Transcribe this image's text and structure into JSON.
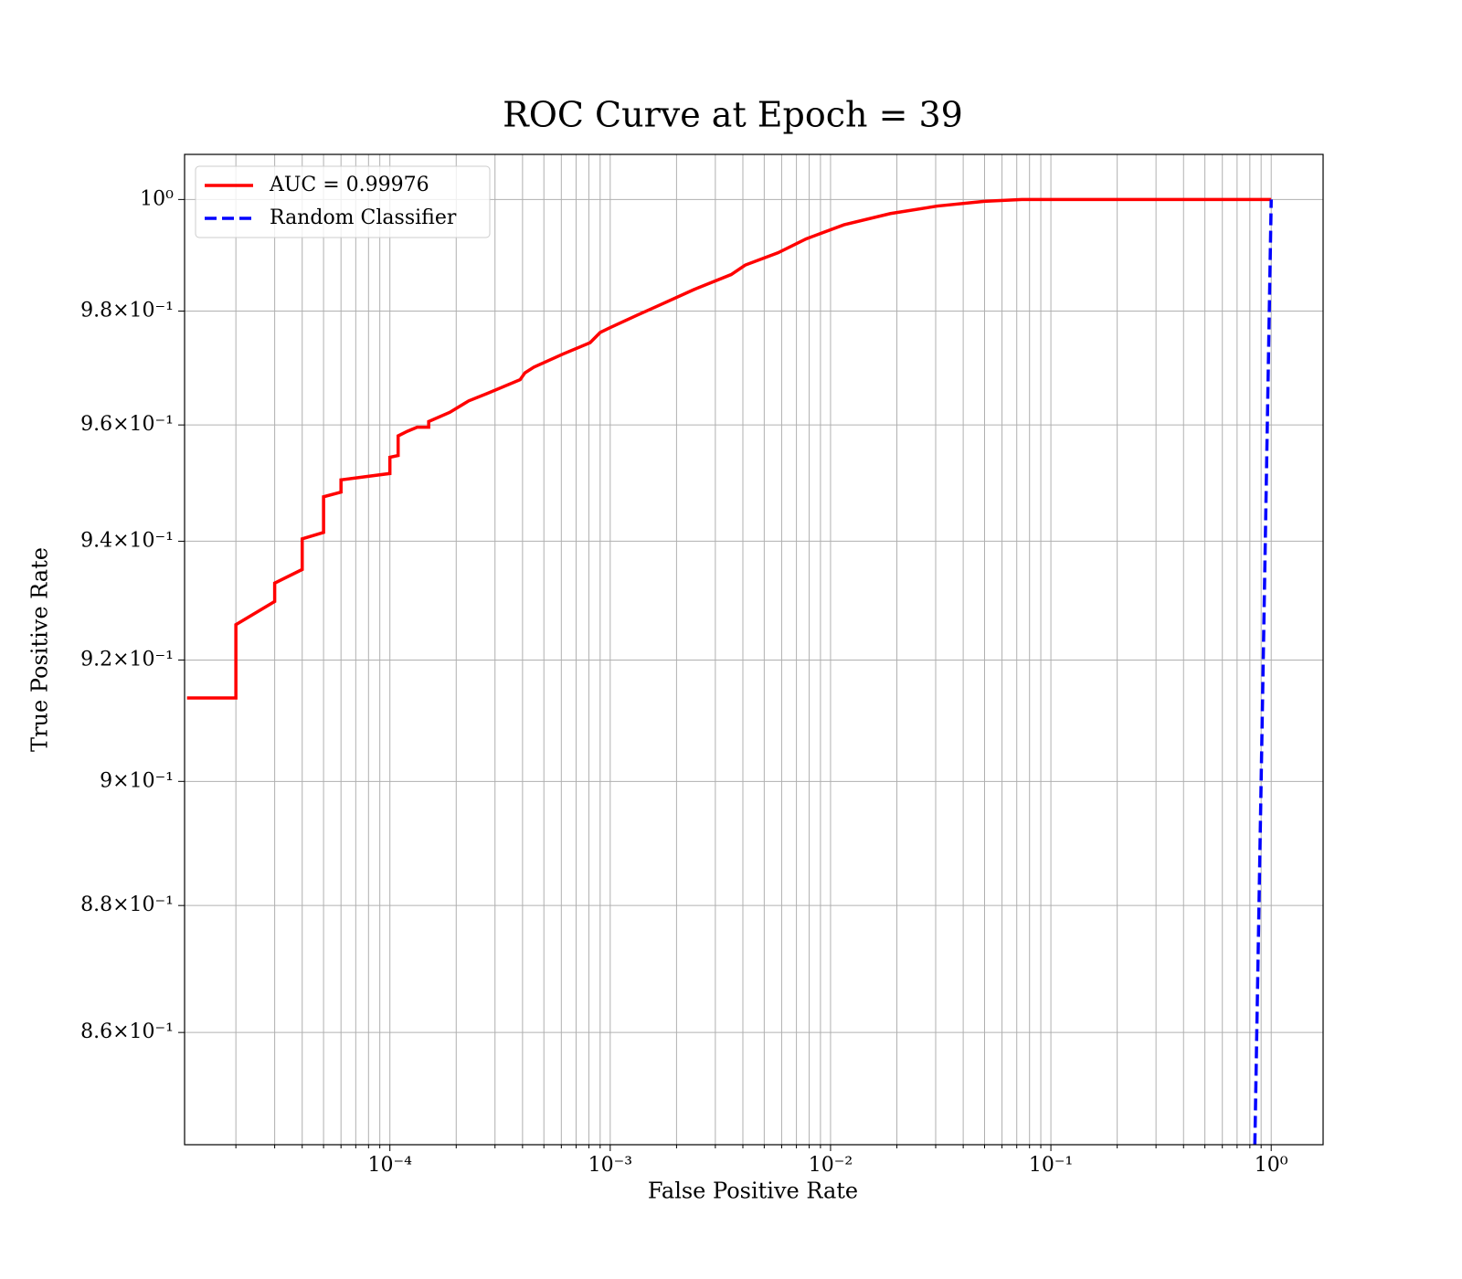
{
  "chart_data": {
    "type": "line",
    "title": "ROC Curve at Epoch = 39",
    "xlabel": "False Positive Rate",
    "ylabel": "True Positive Rate",
    "xscale": "log",
    "yscale": "log",
    "grid": true,
    "legend": "upper left",
    "xlim": [
      1.17e-05,
      1.72
    ],
    "ylim": [
      0.8427,
      1.0082
    ],
    "xticks": [
      {
        "value": 0.0001,
        "label": "10⁻⁴"
      },
      {
        "value": 0.001,
        "label": "10⁻³"
      },
      {
        "value": 0.01,
        "label": "10⁻²"
      },
      {
        "value": 0.1,
        "label": "10⁻¹"
      },
      {
        "value": 1,
        "label": "10⁰"
      }
    ],
    "xminorticks": [
      2e-05,
      3e-05,
      4e-05,
      5e-05,
      6e-05,
      7e-05,
      8e-05,
      9e-05,
      0.0002,
      0.0003,
      0.0004,
      0.0005,
      0.0006,
      0.0007,
      0.0008,
      0.0009,
      0.002,
      0.003,
      0.004,
      0.005,
      0.006,
      0.007,
      0.008,
      0.009,
      0.02,
      0.03,
      0.04,
      0.05,
      0.06,
      0.07,
      0.08,
      0.09,
      0.2,
      0.3,
      0.4,
      0.5,
      0.6,
      0.7,
      0.8,
      0.9
    ],
    "yticks": [
      {
        "value": 0.86,
        "label": "8.6×10⁻¹"
      },
      {
        "value": 0.88,
        "label": "8.8×10⁻¹"
      },
      {
        "value": 0.9,
        "label": "9×10⁻¹"
      },
      {
        "value": 0.92,
        "label": "9.2×10⁻¹"
      },
      {
        "value": 0.94,
        "label": "9.4×10⁻¹"
      },
      {
        "value": 0.96,
        "label": "9.6×10⁻¹"
      },
      {
        "value": 0.98,
        "label": "9.8×10⁻¹"
      },
      {
        "value": 1,
        "label": "10⁰"
      }
    ],
    "series": [
      {
        "name": "AUC = 0.99976",
        "color": "#ff0000",
        "line_style": "solid",
        "x": [
          1.2e-05,
          2e-05,
          2e-05,
          3e-05,
          3e-05,
          4e-05,
          4e-05,
          5e-05,
          5e-05,
          6e-05,
          6e-05,
          0.0001,
          0.0001,
          0.000109,
          0.000109,
          0.00012,
          0.000133,
          0.00015,
          0.00015,
          0.000187,
          0.000228,
          0.000277,
          0.00039,
          0.00041,
          0.00045,
          0.00061,
          0.00081,
          0.0009,
          0.00099,
          0.00133,
          0.00162,
          0.00239,
          0.00354,
          0.0041,
          0.00578,
          0.00775,
          0.0115,
          0.0187,
          0.0305,
          0.0499,
          0.0738,
          1
        ],
        "values": [
          0.9137,
          0.9137,
          0.9259,
          0.9298,
          0.9329,
          0.9352,
          0.9404,
          0.9415,
          0.9476,
          0.9484,
          0.9505,
          0.9516,
          0.9544,
          0.9547,
          0.9581,
          0.9589,
          0.9596,
          0.9596,
          0.9606,
          0.9622,
          0.9642,
          0.9655,
          0.9679,
          0.9691,
          0.9701,
          0.9724,
          0.9744,
          0.9762,
          0.977,
          0.9793,
          0.9808,
          0.9838,
          0.9865,
          0.9882,
          0.9904,
          0.9929,
          0.99543,
          0.99746,
          0.99881,
          0.99966,
          1,
          1
        ]
      },
      {
        "name": "Random Classifier",
        "color": "#0000ff",
        "line_style": "dashed",
        "x": [
          0.84,
          1
        ],
        "values": [
          0.84,
          1
        ]
      }
    ]
  }
}
